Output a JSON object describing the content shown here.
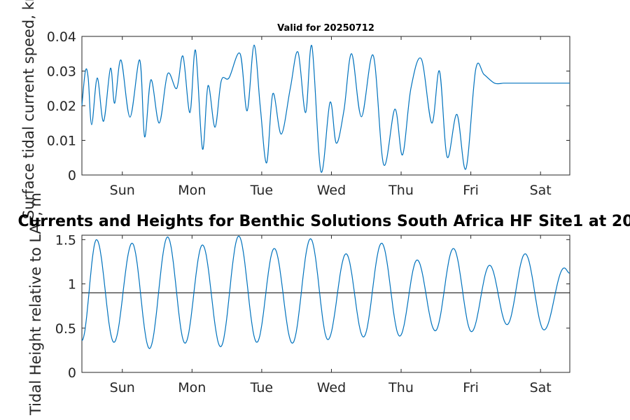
{
  "chart_data": [
    {
      "type": "line",
      "title": "Valid for 20250712",
      "ylabel": "Surface tidal current speed, kn",
      "xlabel": "",
      "ylim": [
        0,
        0.04
      ],
      "y_ticks": [
        "0",
        "0.01",
        "0.02",
        "0.03",
        "0.04"
      ],
      "x_ticks": [
        "Sun",
        "Mon",
        "Tue",
        "Wed",
        "Thu",
        "Fri",
        "Sat"
      ],
      "x_unit": "days from start of window",
      "xlim": [
        0,
        7
      ],
      "grid": false,
      "line_color": "#0072BD",
      "series": [
        {
          "x": [
            0,
            0.05,
            0.09,
            0.14,
            0.22,
            0.31,
            0.41,
            0.47,
            0.56,
            0.69,
            0.83,
            0.9,
            0.99,
            1.11,
            1.23,
            1.36,
            1.45,
            1.55,
            1.63,
            1.73,
            1.81,
            1.91,
            2.0,
            2.11,
            2.27,
            2.37,
            2.47,
            2.56,
            2.65,
            2.74,
            2.86,
            2.99,
            3.1,
            3.21,
            3.3,
            3.43,
            3.56,
            3.65,
            3.76,
            3.87,
            4.01,
            4.18,
            4.33,
            4.49,
            4.6,
            4.72,
            4.87,
            5.02,
            5.13,
            5.24,
            5.38,
            5.51,
            5.65,
            5.77,
            5.92,
            6.05,
            6.15,
            6.25,
            6.4,
            6.55,
            6.7,
            6.78,
            6.88,
            6.97,
            7.0
          ],
          "y": [
            0.02,
            0.03,
            0.028,
            0.0145,
            0.028,
            0.0155,
            0.0308,
            0.0207,
            0.0332,
            0.0167,
            0.0332,
            0.011,
            0.0275,
            0.015,
            0.0292,
            0.025,
            0.0343,
            0.018,
            0.036,
            0.0075,
            0.0258,
            0.0138,
            0.0272,
            0.028,
            0.035,
            0.0185,
            0.0375,
            0.0195,
            0.0035,
            0.0235,
            0.0118,
            0.025,
            0.0355,
            0.018,
            0.0372,
            0.001,
            0.021,
            0.0092,
            0.0187,
            0.035,
            0.0168,
            0.0345,
            0.003,
            0.019,
            0.0058,
            0.025,
            0.0335,
            0.015,
            0.03,
            0.0052,
            0.0175,
            0.0018,
            0.0305,
            0.029,
            0.0265,
            0.0265,
            0.0265,
            0.0265,
            0.0265,
            0.0265,
            0.0265,
            0.0265,
            0.0265,
            0.0265,
            0.0265
          ]
        }
      ]
    },
    {
      "type": "line",
      "title": "Currents and Heights for Benthic Solutions South Africa HF Site1 at 20",
      "ylabel": "Tidal Height relative to LAT, m",
      "xlabel": "",
      "ylim": [
        0,
        1.55
      ],
      "y_ticks": [
        "0",
        "0.5",
        "1",
        "1.5"
      ],
      "x_ticks": [
        "Sun",
        "Mon",
        "Tue",
        "Wed",
        "Thu",
        "Fri",
        "Sat"
      ],
      "x_unit": "days from start of window",
      "xlim": [
        0,
        7
      ],
      "grid": false,
      "line_color": "#0072BD",
      "reference_line": 0.9,
      "reference_color": "#000000",
      "period_days": 0.5175,
      "series": [
        {
          "peaks": [
            {
              "x": 0.21,
              "y": 1.5
            },
            {
              "x": 0.72,
              "y": 1.46
            },
            {
              "x": 1.23,
              "y": 1.53
            },
            {
              "x": 1.73,
              "y": 1.44
            },
            {
              "x": 2.25,
              "y": 1.54
            },
            {
              "x": 2.76,
              "y": 1.4
            },
            {
              "x": 3.28,
              "y": 1.51
            },
            {
              "x": 3.79,
              "y": 1.34
            },
            {
              "x": 4.3,
              "y": 1.46
            },
            {
              "x": 4.81,
              "y": 1.27
            },
            {
              "x": 5.33,
              "y": 1.4
            },
            {
              "x": 5.85,
              "y": 1.21
            },
            {
              "x": 6.36,
              "y": 1.34
            },
            {
              "x": 6.92,
              "y": 1.18
            }
          ],
          "troughs": [
            {
              "x": 0.46,
              "y": 0.34
            },
            {
              "x": 0.97,
              "y": 0.27
            },
            {
              "x": 1.48,
              "y": 0.33
            },
            {
              "x": 1.99,
              "y": 0.29
            },
            {
              "x": 2.51,
              "y": 0.34
            },
            {
              "x": 3.02,
              "y": 0.33
            },
            {
              "x": 3.53,
              "y": 0.37
            },
            {
              "x": 4.04,
              "y": 0.4
            },
            {
              "x": 4.56,
              "y": 0.41
            },
            {
              "x": 5.07,
              "y": 0.47
            },
            {
              "x": 5.59,
              "y": 0.46
            },
            {
              "x": 6.1,
              "y": 0.54
            },
            {
              "x": 6.63,
              "y": 0.48
            }
          ],
          "start": {
            "x": 0,
            "y": 0.36
          },
          "end": {
            "x": 7.0,
            "y": 1.12
          }
        }
      ]
    }
  ]
}
